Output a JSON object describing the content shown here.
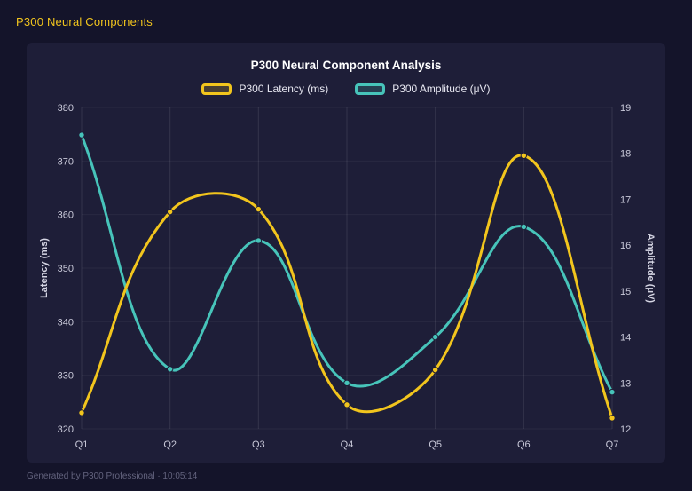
{
  "page": {
    "header_title": "P300 Neural Components",
    "footer": "Generated by P300 Professional · 10:05:14"
  },
  "chart_data": {
    "type": "line",
    "title": "P300 Neural Component Analysis",
    "categories": [
      "Q1",
      "Q2",
      "Q3",
      "Q4",
      "Q5",
      "Q6",
      "Q7"
    ],
    "series": [
      {
        "name": "P300 Latency (ms)",
        "axis": "left",
        "color": "#f2c51d",
        "values": [
          323,
          360.5,
          361,
          324.5,
          331,
          371,
          322
        ]
      },
      {
        "name": "P300 Amplitude (μV)",
        "axis": "right",
        "color": "#47c4ba",
        "values": [
          18.4,
          13.3,
          16.1,
          13.0,
          14.0,
          16.4,
          12.8
        ]
      }
    ],
    "left_axis": {
      "label": "Latency (ms)",
      "min": 320,
      "max": 380,
      "step": 10
    },
    "right_axis": {
      "label": "Amplitude (μV)",
      "min": 12,
      "max": 19,
      "step": 1
    },
    "legend_position": "top",
    "grid": true,
    "line_tension": 0.4
  }
}
